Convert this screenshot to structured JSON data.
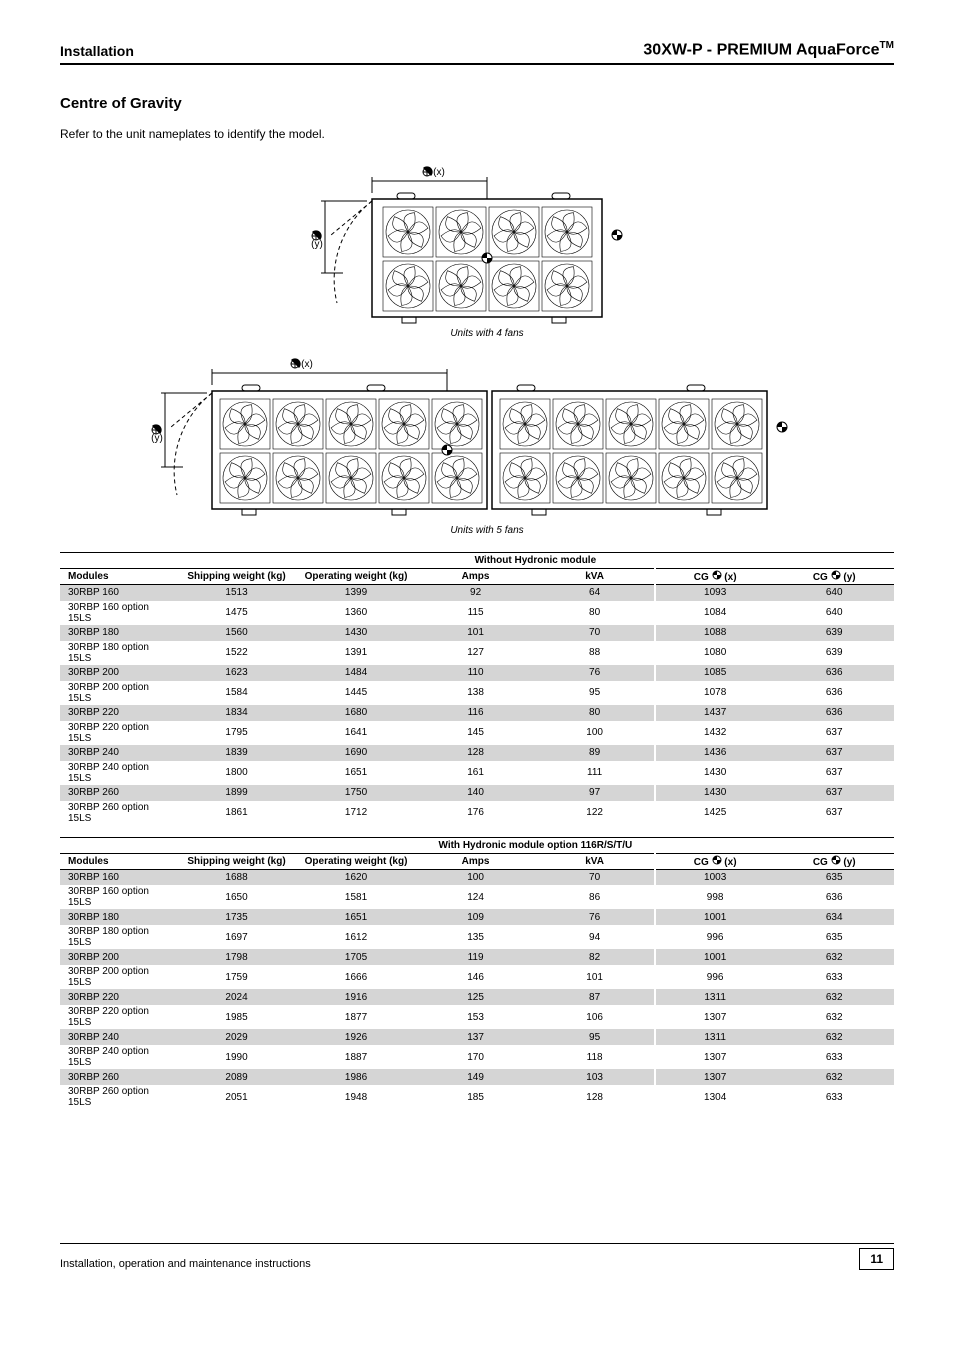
{
  "header": {
    "left": "Installation",
    "right_brand": "30XW-P - PREMIUM AquaForce",
    "right_tm": "TM"
  },
  "section_title": "Centre of Gravity",
  "intro": "Refer to the unit nameplates to identify the model.",
  "fig_top_caption": "Units with 4 fans",
  "fig_bottom_caption": "Units with 5 fans",
  "axis": {
    "x": "(x)",
    "y": "(y)"
  },
  "tables": [
    {
      "main_header": "Without Hydronic module",
      "sub_headers": [
        "Modules",
        "Shipping weight (kg)",
        "Operating weight (kg)",
        "Amps",
        "kVA",
        "CG (x)",
        "CG (y)"
      ],
      "rows": [
        [
          "30RBP 160",
          "1513",
          "1399",
          "92",
          "64",
          "1093",
          "640"
        ],
        [
          "30RBP 160 option 15LS",
          "1475",
          "1360",
          "115",
          "80",
          "1084",
          "640"
        ],
        [
          "30RBP 180",
          "1560",
          "1430",
          "101",
          "70",
          "1088",
          "639"
        ],
        [
          "30RBP 180 option 15LS",
          "1522",
          "1391",
          "127",
          "88",
          "1080",
          "639"
        ],
        [
          "30RBP 200",
          "1623",
          "1484",
          "110",
          "76",
          "1085",
          "636"
        ],
        [
          "30RBP 200 option 15LS",
          "1584",
          "1445",
          "138",
          "95",
          "1078",
          "636"
        ],
        [
          "30RBP 220",
          "1834",
          "1680",
          "116",
          "80",
          "1437",
          "636"
        ],
        [
          "30RBP 220 option 15LS",
          "1795",
          "1641",
          "145",
          "100",
          "1432",
          "637"
        ],
        [
          "30RBP 240",
          "1839",
          "1690",
          "128",
          "89",
          "1436",
          "637"
        ],
        [
          "30RBP 240 option 15LS",
          "1800",
          "1651",
          "161",
          "111",
          "1430",
          "637"
        ],
        [
          "30RBP 260",
          "1899",
          "1750",
          "140",
          "97",
          "1430",
          "637"
        ],
        [
          "30RBP 260 option 15LS",
          "1861",
          "1712",
          "176",
          "122",
          "1425",
          "637"
        ]
      ]
    },
    {
      "main_header": "With Hydronic module option 116R/S/T/U",
      "sub_headers": [
        "Modules",
        "Shipping weight (kg)",
        "Operating weight (kg)",
        "Amps",
        "kVA",
        "CG (x)",
        "CG (y)"
      ],
      "rows": [
        [
          "30RBP 160",
          "1688",
          "1620",
          "100",
          "70",
          "1003",
          "635"
        ],
        [
          "30RBP 160 option 15LS",
          "1650",
          "1581",
          "124",
          "86",
          "998",
          "636"
        ],
        [
          "30RBP 180",
          "1735",
          "1651",
          "109",
          "76",
          "1001",
          "634"
        ],
        [
          "30RBP 180 option 15LS",
          "1697",
          "1612",
          "135",
          "94",
          "996",
          "635"
        ],
        [
          "30RBP 200",
          "1798",
          "1705",
          "119",
          "82",
          "1001",
          "632"
        ],
        [
          "30RBP 200 option 15LS",
          "1759",
          "1666",
          "146",
          "101",
          "996",
          "633"
        ],
        [
          "30RBP 220",
          "2024",
          "1916",
          "125",
          "87",
          "1311",
          "632"
        ],
        [
          "30RBP 220 option 15LS",
          "1985",
          "1877",
          "153",
          "106",
          "1307",
          "632"
        ],
        [
          "30RBP 240",
          "2029",
          "1926",
          "137",
          "95",
          "1311",
          "632"
        ],
        [
          "30RBP 240 option 15LS",
          "1990",
          "1887",
          "170",
          "118",
          "1307",
          "633"
        ],
        [
          "30RBP 260",
          "2089",
          "1986",
          "149",
          "103",
          "1307",
          "632"
        ],
        [
          "30RBP 260 option 15LS",
          "2051",
          "1948",
          "185",
          "128",
          "1304",
          "633"
        ]
      ]
    }
  ],
  "footer": {
    "left": "Installation, operation and maintenance instructions",
    "page": "11"
  },
  "colors": {
    "row_alt": "#d5d5d5",
    "text": "#000000",
    "bg": "#ffffff"
  }
}
